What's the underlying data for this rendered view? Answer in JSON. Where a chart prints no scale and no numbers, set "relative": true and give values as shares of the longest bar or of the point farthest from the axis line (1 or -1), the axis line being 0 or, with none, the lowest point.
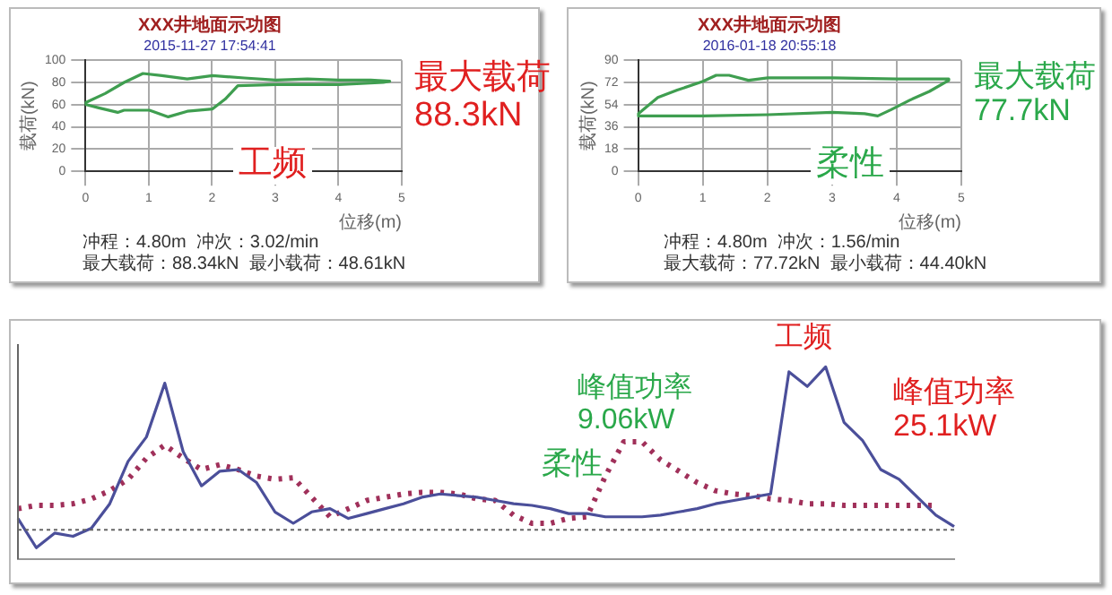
{
  "chart_data": [
    {
      "type": "line",
      "title": "XXX井地面示功图",
      "subtitle": "2015-11-27 17:54:41",
      "xlabel": "位移(m)",
      "ylabel": "载荷(kN)",
      "xlim": [
        0,
        5
      ],
      "xticks": [
        0,
        1,
        2,
        3,
        4,
        5
      ],
      "ylim": [
        0,
        100
      ],
      "yticks": [
        0,
        20,
        40,
        60,
        80,
        100
      ],
      "grid": true,
      "annotations": [
        "冲程：4.80m  冲次：3.02/min",
        "最大载荷：88.34kN  最小载荷：48.61kN",
        "最大载荷\n88.3kN",
        "工频"
      ]
    },
    {
      "type": "line",
      "title": "XXX井地面示功图",
      "subtitle": "2016-01-18 20:55:18",
      "xlabel": "位移(m)",
      "ylabel": "载荷(kN)",
      "xlim": [
        0,
        5
      ],
      "xticks": [
        0,
        1,
        2,
        3,
        4,
        5
      ],
      "ylim": [
        0,
        90
      ],
      "yticks": [
        0,
        18,
        36,
        54,
        72,
        90
      ],
      "grid": true,
      "annotations": [
        "冲程：4.80m  冲次：1.56/min",
        "最大载荷：77.72kN  最小载荷：44.40kN",
        "最大载荷\n77.7kN",
        "柔性"
      ]
    },
    {
      "type": "line",
      "relative": true,
      "ref_lines": [
        {
          "axis": "y",
          "value": 0,
          "color": "#666666",
          "line_style": "dashed"
        }
      ],
      "categories": [
        null,
        null,
        null,
        null,
        null,
        null,
        null,
        null,
        null,
        null,
        null,
        null,
        null,
        null,
        null,
        null,
        null,
        null,
        null,
        null,
        null,
        null,
        null,
        null,
        null,
        null,
        null,
        null,
        null,
        null,
        null,
        null,
        null,
        null,
        null,
        null,
        null,
        null,
        null,
        null,
        null,
        null,
        null,
        null,
        null,
        null,
        null,
        null,
        null,
        null,
        null,
        null
      ],
      "series": [
        {
          "color": "#4b4f9a",
          "line_style": "solid",
          "values": [
            0.07,
            -0.11,
            -0.02,
            -0.04,
            0.01,
            0.16,
            0.42,
            0.57,
            0.9,
            0.48,
            0.27,
            0.36,
            0.37,
            0.29,
            0.11,
            0.04,
            0.11,
            0.13,
            0.07,
            0.1,
            0.13,
            0.16,
            0.2,
            0.22,
            0.21,
            0.2,
            0.18,
            0.16,
            0.15,
            0.13,
            0.1,
            0.1,
            0.08,
            0.08,
            0.08,
            0.09,
            0.11,
            0.13,
            0.16,
            0.18,
            0.2,
            0.22,
            0.97,
            0.88,
            1,
            0.66,
            0.55,
            0.37,
            0.31,
            0.2,
            0.09,
            0.02
          ]
        },
        {
          "color": "#a0305a",
          "line_style": "dotted",
          "values": [
            0.13,
            0.15,
            0.15,
            0.16,
            0.19,
            0.24,
            0.31,
            0.44,
            0.52,
            0.44,
            0.37,
            0.4,
            0.37,
            0.33,
            0.31,
            0.32,
            0.2,
            0.08,
            0.13,
            0.18,
            0.2,
            0.22,
            0.23,
            0.23,
            0.22,
            0.19,
            0.18,
            0.09,
            0.04,
            0.04,
            0.07,
            0.08,
            0.33,
            0.54,
            0.54,
            0.43,
            0.36,
            0.29,
            0.24,
            0.22,
            0.21,
            0.19,
            0.18,
            0.16,
            0.16,
            0.15,
            0.15,
            0.15,
            0.15,
            0.15,
            0.15,
            null
          ]
        }
      ],
      "annotations": [
        "柔性",
        "峰值功率\n9.06kW",
        "工频",
        "峰值功率\n25.1kW"
      ]
    }
  ]
}
